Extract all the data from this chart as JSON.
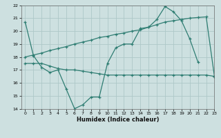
{
  "xlabel": "Humidex (Indice chaleur)",
  "background_color": "#cde0e0",
  "grid_color": "#adc8c8",
  "line_color": "#2e7d72",
  "ylim": [
    14,
    22
  ],
  "xlim": [
    -0.5,
    23
  ],
  "yticks": [
    14,
    15,
    16,
    17,
    18,
    19,
    20,
    21,
    22
  ],
  "xticks": [
    0,
    1,
    2,
    3,
    4,
    5,
    6,
    7,
    8,
    9,
    10,
    11,
    12,
    13,
    14,
    15,
    16,
    17,
    18,
    19,
    20,
    21,
    22,
    23
  ],
  "line1_x": [
    0,
    1,
    2,
    3,
    4,
    5,
    6,
    7,
    8,
    9,
    10,
    11,
    12,
    13,
    14,
    15,
    16,
    17,
    18,
    19,
    20,
    21
  ],
  "line1_y": [
    20.7,
    18.1,
    17.2,
    16.8,
    17.0,
    15.5,
    14.0,
    14.3,
    14.9,
    14.9,
    17.5,
    18.7,
    19.0,
    19.0,
    20.2,
    20.3,
    20.9,
    21.9,
    21.5,
    20.8,
    19.4,
    17.6
  ],
  "line2_x": [
    0,
    1,
    2,
    3,
    4,
    5,
    6,
    7,
    8,
    9,
    10,
    11,
    12,
    13,
    14,
    15,
    16,
    17,
    18,
    19,
    20,
    21,
    22,
    23
  ],
  "line2_y": [
    17.5,
    17.5,
    17.5,
    17.3,
    17.1,
    17.0,
    17.0,
    16.9,
    16.8,
    16.7,
    16.6,
    16.6,
    16.6,
    16.6,
    16.6,
    16.6,
    16.6,
    16.6,
    16.6,
    16.6,
    16.6,
    16.6,
    16.6,
    16.5
  ],
  "line3_x": [
    0,
    1,
    2,
    3,
    4,
    5,
    6,
    7,
    8,
    9,
    10,
    11,
    12,
    13,
    14,
    15,
    16,
    17,
    18,
    19,
    20,
    21,
    22,
    23
  ],
  "line3_y": [
    18.0,
    18.15,
    18.3,
    18.5,
    18.65,
    18.8,
    19.0,
    19.15,
    19.3,
    19.5,
    19.6,
    19.75,
    19.85,
    20.0,
    20.1,
    20.3,
    20.5,
    20.7,
    20.8,
    20.9,
    21.0,
    21.05,
    21.1,
    16.5
  ]
}
